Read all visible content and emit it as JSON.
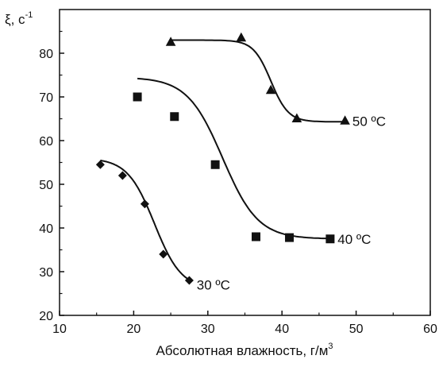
{
  "chart_data": {
    "type": "line",
    "title": "",
    "ylabel": "ξ, с",
    "ylabel_sup": "-1",
    "xlabel": "Абсолютная влажность, г/м",
    "xlabel_sup": "3",
    "xlim": [
      10,
      60
    ],
    "ylim": [
      20,
      90
    ],
    "xticks": [
      10,
      20,
      30,
      40,
      50,
      60
    ],
    "yticks": [
      20,
      30,
      40,
      50,
      60,
      70,
      80
    ],
    "grid": false,
    "legend": "none",
    "series": [
      {
        "name": "30 ºC",
        "marker": "diamond",
        "x": [
          15.5,
          18.5,
          21.5,
          24.0,
          27.5
        ],
        "y": [
          54.5,
          52.0,
          45.5,
          34.0,
          28.0
        ]
      },
      {
        "name": "40 ºC",
        "marker": "square",
        "x": [
          20.5,
          25.5,
          31.0,
          36.5,
          41.0,
          46.5
        ],
        "y": [
          70.0,
          65.5,
          54.5,
          38.0,
          37.8,
          37.5
        ]
      },
      {
        "name": "50 ºC",
        "marker": "triangle",
        "x": [
          25.0,
          34.5,
          38.5,
          42.0,
          48.5
        ],
        "y": [
          82.5,
          83.5,
          71.5,
          65.0,
          64.5
        ]
      }
    ],
    "curves": [
      {
        "x0": 15.5,
        "x1": 27.8,
        "lo": 26.0,
        "hi": 56.0,
        "mid": 22.8,
        "k": 0.55
      },
      {
        "x0": 20.5,
        "x1": 46.5,
        "lo": 37.5,
        "hi": 74.5,
        "mid": 32.0,
        "k": 0.42
      },
      {
        "x0": 25.0,
        "x1": 48.5,
        "lo": 64.3,
        "hi": 83.0,
        "mid": 38.5,
        "k": 0.85
      }
    ],
    "label_anchor": [
      {
        "x": 28.5,
        "y": 27.0
      },
      {
        "x": 47.5,
        "y": 37.5
      },
      {
        "x": 49.5,
        "y": 64.5
      }
    ]
  }
}
